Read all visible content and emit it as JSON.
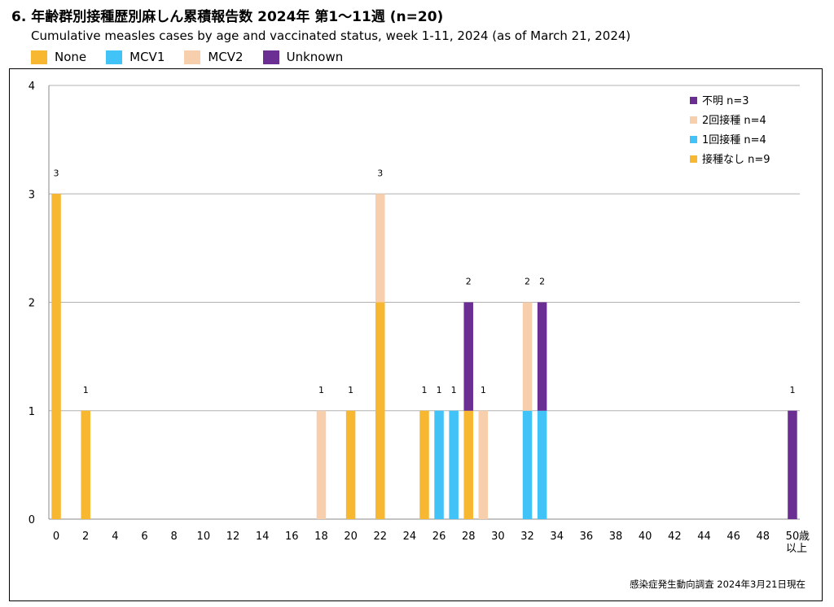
{
  "title": "6. 年齢群別接種歴別麻しん累積報告数 2024年 第1～11週 (n=20)",
  "subtitle": "Cumulative measles cases by age and vaccinated status, week 1-11, 2024 (as of March 21, 2024)",
  "source": "感染症発生動向調査 2024年3月21日現在",
  "legend_top": [
    {
      "label": "None",
      "color": "#F7B731"
    },
    {
      "label": "MCV1",
      "color": "#41C3F7"
    },
    {
      "label": "MCV2",
      "color": "#F8CFAD"
    },
    {
      "label": "Unknown",
      "color": "#6B2F93"
    }
  ],
  "chart_data": {
    "type": "bar",
    "stacked": true,
    "xlabel_tail": [
      "歳",
      "以上"
    ],
    "x_ticks": [
      "0",
      "2",
      "4",
      "6",
      "8",
      "10",
      "12",
      "14",
      "16",
      "18",
      "20",
      "22",
      "24",
      "26",
      "28",
      "30",
      "32",
      "34",
      "36",
      "38",
      "40",
      "42",
      "44",
      "46",
      "48",
      "50"
    ],
    "ylim": [
      0,
      4
    ],
    "y_ticks": [
      0,
      1,
      2,
      3,
      4
    ],
    "grid": true,
    "legend_position": "top-right",
    "series": [
      {
        "name": "接種なし n=9",
        "color": "#F7B731",
        "points": [
          {
            "x": 0,
            "y": 3
          },
          {
            "x": 2,
            "y": 1
          },
          {
            "x": 20,
            "y": 1
          },
          {
            "x": 22,
            "y": 2
          },
          {
            "x": 25,
            "y": 1
          },
          {
            "x": 28,
            "y": 1
          }
        ]
      },
      {
        "name": "1回接種 n=4",
        "color": "#41C3F7",
        "points": [
          {
            "x": 26,
            "y": 1
          },
          {
            "x": 27,
            "y": 1
          },
          {
            "x": 32,
            "y": 1
          },
          {
            "x": 33,
            "y": 1
          }
        ]
      },
      {
        "name": "2回接種 n=4",
        "color": "#F8CFAD",
        "points": [
          {
            "x": 18,
            "y": 1
          },
          {
            "x": 22,
            "y": 1
          },
          {
            "x": 29,
            "y": 1
          },
          {
            "x": 32,
            "y": 1
          }
        ]
      },
      {
        "name": "不明 n=3",
        "color": "#6B2F93",
        "points": [
          {
            "x": 28,
            "y": 1
          },
          {
            "x": 33,
            "y": 1
          },
          {
            "x": 50,
            "y": 1
          }
        ]
      }
    ],
    "legend_order": [
      3,
      2,
      1,
      0
    ],
    "totals": [
      {
        "x": 0,
        "label": "3"
      },
      {
        "x": 2,
        "label": "1"
      },
      {
        "x": 18,
        "label": "1"
      },
      {
        "x": 20,
        "label": "1"
      },
      {
        "x": 22,
        "label": "3"
      },
      {
        "x": 25,
        "label": "1"
      },
      {
        "x": 26,
        "label": "1"
      },
      {
        "x": 27,
        "label": "1"
      },
      {
        "x": 28,
        "label": "2"
      },
      {
        "x": 29,
        "label": "1"
      },
      {
        "x": 32,
        "label": "2"
      },
      {
        "x": 33,
        "label": "2"
      },
      {
        "x": 50,
        "label": "1"
      }
    ]
  }
}
